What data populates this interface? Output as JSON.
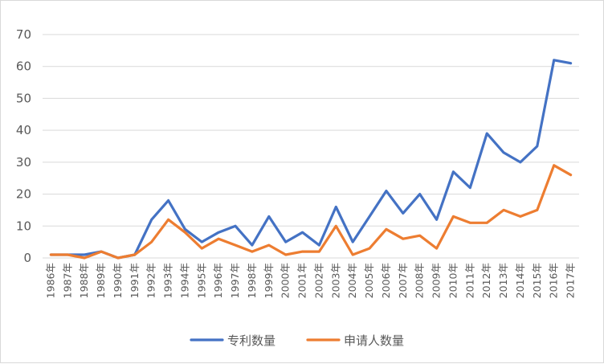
{
  "chart_data": {
    "type": "line",
    "title": "",
    "xlabel": "",
    "ylabel": "",
    "ylim": [
      0,
      70
    ],
    "yticks": [
      0,
      10,
      20,
      30,
      40,
      50,
      60,
      70
    ],
    "grid": true,
    "legend_position": "bottom",
    "categories": [
      "1986年",
      "1987年",
      "1988年",
      "1989年",
      "1990年",
      "1991年",
      "1992年",
      "1993年",
      "1994年",
      "1995年",
      "1996年",
      "1997年",
      "1998年",
      "1999年",
      "2000年",
      "2001年",
      "2002年",
      "2003年",
      "2004年",
      "2005年",
      "2006年",
      "2007年",
      "2008年",
      "2009年",
      "2010年",
      "2011年",
      "2012年",
      "2013年",
      "2014年",
      "2015年",
      "2016年",
      "2017年"
    ],
    "series": [
      {
        "name": "专利数量",
        "color": "#4472c4",
        "values": [
          1,
          1,
          1,
          2,
          0,
          1,
          12,
          18,
          9,
          5,
          8,
          10,
          4,
          13,
          5,
          8,
          4,
          16,
          5,
          13,
          21,
          14,
          20,
          12,
          27,
          22,
          39,
          33,
          30,
          35,
          62,
          61
        ]
      },
      {
        "name": "申请人数量",
        "color": "#ed7d31",
        "values": [
          1,
          1,
          0,
          2,
          0,
          1,
          5,
          12,
          8,
          3,
          6,
          4,
          2,
          4,
          1,
          2,
          2,
          10,
          1,
          3,
          9,
          6,
          7,
          3,
          13,
          11,
          11,
          15,
          13,
          15,
          29,
          26
        ]
      }
    ]
  }
}
